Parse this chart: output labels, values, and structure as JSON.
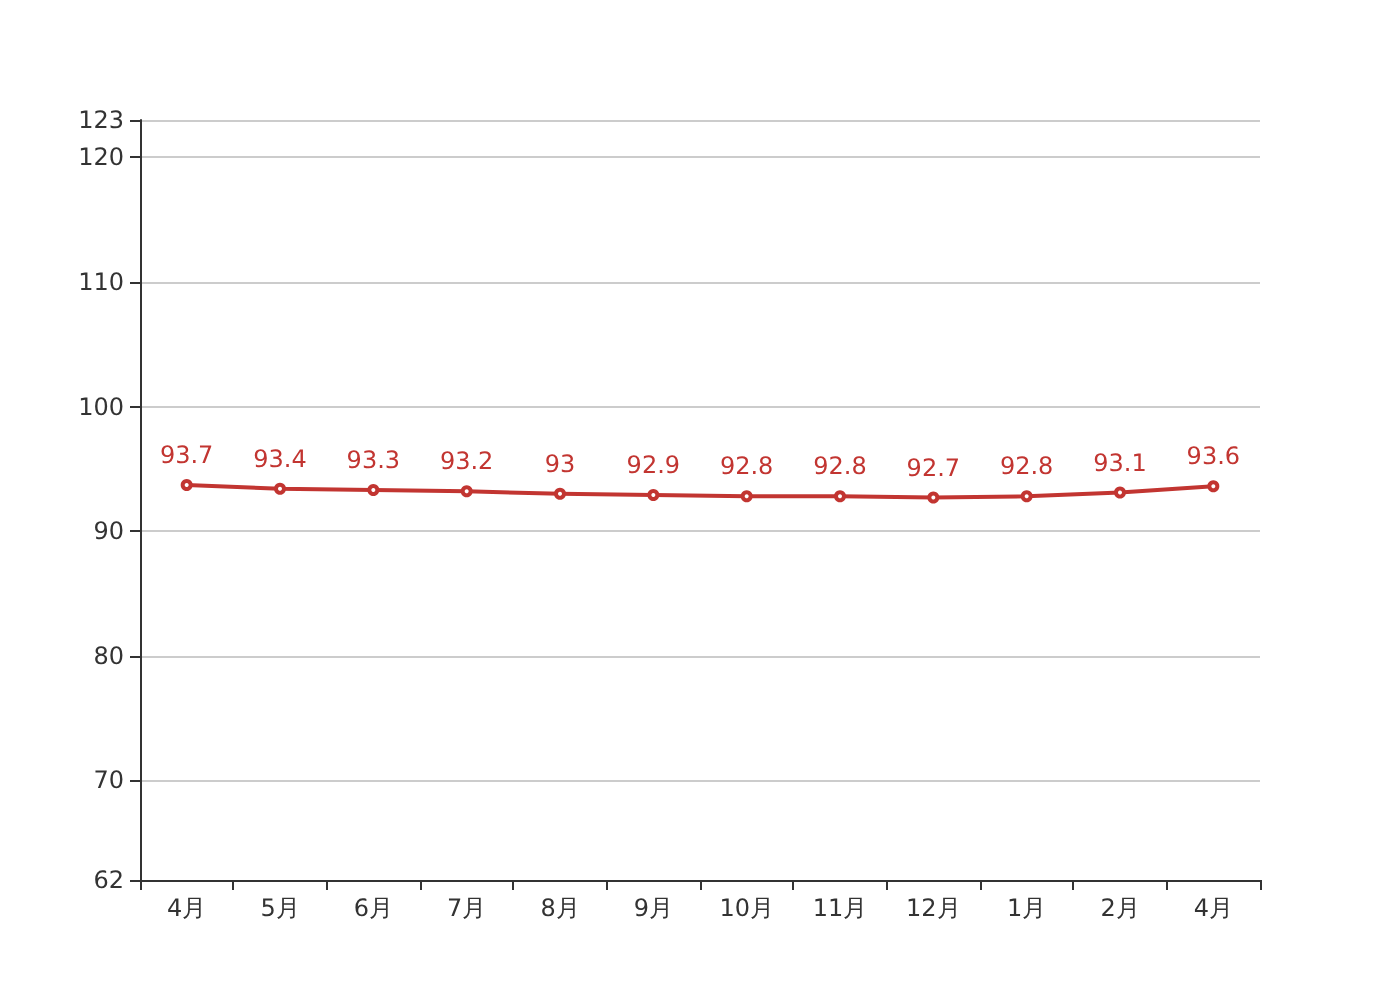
{
  "chart_data": {
    "type": "line",
    "categories": [
      "4月",
      "5月",
      "6月",
      "7月",
      "8月",
      "9月",
      "10月",
      "11月",
      "12月",
      "1月",
      "2月",
      "4月"
    ],
    "series": [
      {
        "color": "#c23531",
        "values": [
          93.7,
          93.4,
          93.3,
          93.2,
          93,
          92.9,
          92.8,
          92.8,
          92.7,
          92.8,
          93.1,
          93.6
        ]
      }
    ],
    "ylim": [
      62,
      123
    ],
    "yticks": [
      62,
      70,
      80,
      90,
      100,
      110,
      120,
      123
    ],
    "grid": "y",
    "marker": "circle",
    "line_style": "solid",
    "data_labels": true
  }
}
